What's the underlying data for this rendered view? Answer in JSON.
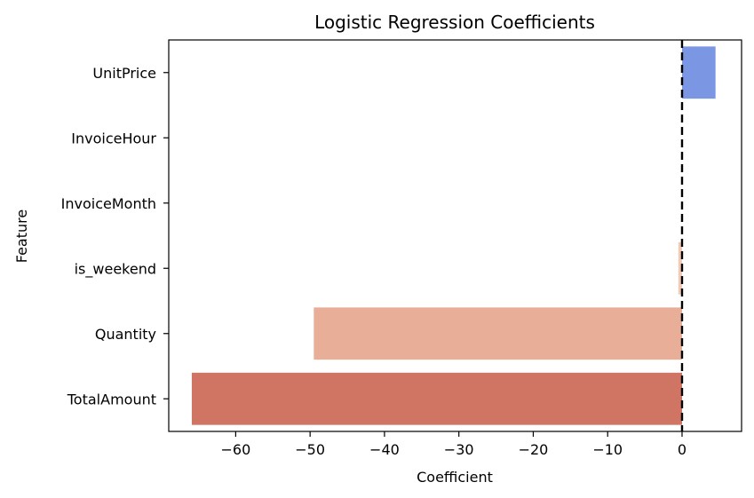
{
  "chart_data": {
    "type": "bar",
    "orientation": "horizontal",
    "title": "Logistic Regression Coefficients",
    "xlabel": "Coefficient",
    "ylabel": "Feature",
    "categories": [
      "UnitPrice",
      "InvoiceHour",
      "InvoiceMonth",
      "is_weekend",
      "Quantity",
      "TotalAmount"
    ],
    "values": [
      4.5,
      0.0,
      0.0,
      -0.5,
      -49.5,
      -65.9
    ],
    "colors": [
      "#7b96e2",
      "#dddddd",
      "#dddddd",
      "#f2cbb7",
      "#e9ae97",
      "#d07563"
    ],
    "xlim": [
      -69,
      8
    ],
    "xticks": [
      -60,
      -50,
      -40,
      -30,
      -20,
      -10,
      0
    ],
    "xtick_labels": [
      "−60",
      "−50",
      "−40",
      "−30",
      "−20",
      "−10",
      "0"
    ],
    "reference_line": {
      "x": 0,
      "style": "dashed",
      "color": "#000000"
    },
    "grid": false
  }
}
